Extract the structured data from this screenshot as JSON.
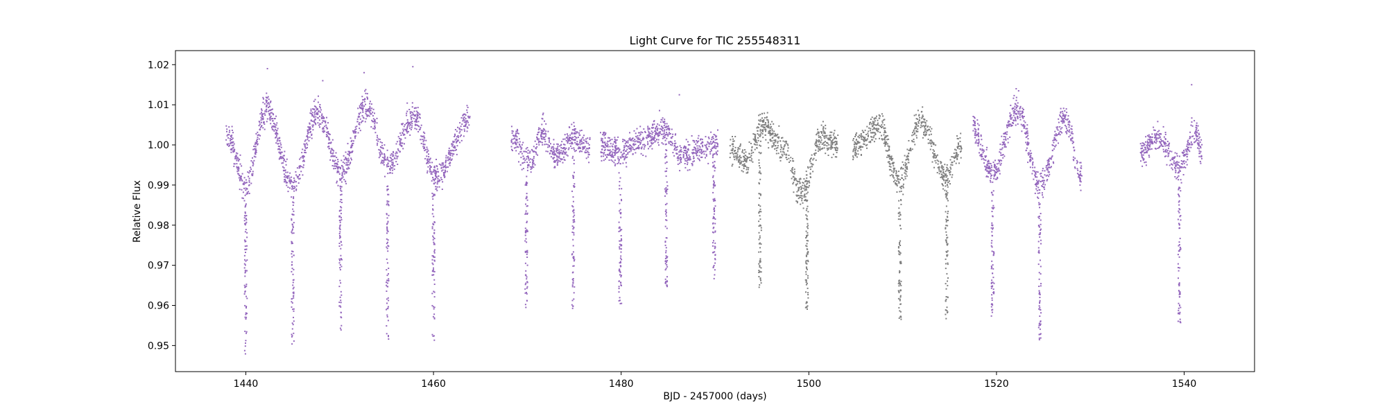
{
  "chart_data": {
    "type": "scatter",
    "title": "Light Curve for TIC 255548311",
    "xlabel": "BJD - 2457000 (days)",
    "ylabel": "Relative Flux",
    "xlim": [
      1432.5,
      1547.5
    ],
    "ylim": [
      0.9435,
      1.0235
    ],
    "xticks": [
      1440,
      1460,
      1480,
      1500,
      1520,
      1540
    ],
    "yticks": [
      0.95,
      0.96,
      0.97,
      0.98,
      0.99,
      1.0,
      1.01,
      1.02
    ],
    "ytick_labels": [
      "0.95",
      "0.96",
      "0.97",
      "0.98",
      "0.99",
      "1.00",
      "1.01",
      "1.02"
    ],
    "grid": false,
    "legend": "none",
    "colors": {
      "purple": "#9467bd",
      "gray": "#7f7f7f"
    },
    "segments": [
      {
        "x_start": 1437.9,
        "x_end": 1463.9,
        "color": "purple"
      },
      {
        "x_start": 1468.3,
        "x_end": 1476.7,
        "color": "purple"
      },
      {
        "x_start": 1477.8,
        "x_end": 1490.3,
        "color": "purple"
      },
      {
        "x_start": 1491.6,
        "x_end": 1503.1,
        "color": "gray"
      },
      {
        "x_start": 1504.7,
        "x_end": 1516.3,
        "color": "gray"
      },
      {
        "x_start": 1517.5,
        "x_end": 1529.1,
        "color": "purple"
      },
      {
        "x_start": 1535.3,
        "x_end": 1541.9,
        "color": "purple"
      }
    ],
    "trend_knots": [
      [
        1437.9,
        1.003
      ],
      [
        1440.0,
        0.99
      ],
      [
        1442.2,
        1.009
      ],
      [
        1445.0,
        0.99
      ],
      [
        1447.6,
        1.008
      ],
      [
        1450.2,
        0.993
      ],
      [
        1452.8,
        1.01
      ],
      [
        1455.2,
        0.995
      ],
      [
        1457.9,
        1.007
      ],
      [
        1460.3,
        0.992
      ],
      [
        1463.8,
        1.006
      ],
      [
        1468.3,
        1.002
      ],
      [
        1470.3,
        0.996
      ],
      [
        1471.6,
        1.003
      ],
      [
        1473.2,
        0.997
      ],
      [
        1474.6,
        1.002
      ],
      [
        1476.6,
        0.999
      ],
      [
        1477.8,
        1.0
      ],
      [
        1479.7,
        0.998
      ],
      [
        1482.0,
        1.001
      ],
      [
        1484.4,
        1.004
      ],
      [
        1486.5,
        0.997
      ],
      [
        1488.3,
        0.999
      ],
      [
        1490.2,
        1.0
      ],
      [
        1491.6,
        0.999
      ],
      [
        1493.3,
        0.996
      ],
      [
        1495.2,
        1.005
      ],
      [
        1497.4,
        0.999
      ],
      [
        1499.2,
        0.988
      ],
      [
        1501.4,
        1.002
      ],
      [
        1503.1,
        1.0
      ],
      [
        1504.7,
        0.999
      ],
      [
        1507.5,
        1.005
      ],
      [
        1509.6,
        0.991
      ],
      [
        1511.9,
        1.006
      ],
      [
        1514.6,
        0.992
      ],
      [
        1516.3,
        1.0
      ],
      [
        1517.5,
        1.004
      ],
      [
        1519.5,
        0.993
      ],
      [
        1522.2,
        1.009
      ],
      [
        1524.6,
        0.99
      ],
      [
        1527.3,
        1.006
      ],
      [
        1529.1,
        0.992
      ],
      [
        1535.3,
        0.998
      ],
      [
        1537.2,
        1.002
      ],
      [
        1539.5,
        0.994
      ],
      [
        1541.2,
        1.004
      ],
      [
        1541.9,
        0.998
      ]
    ],
    "noise_amplitude": 0.0025,
    "transits": [
      {
        "x": 1440.0,
        "depth_min": 0.9475,
        "color": "purple"
      },
      {
        "x": 1445.0,
        "depth_min": 0.95,
        "color": "purple"
      },
      {
        "x": 1450.1,
        "depth_min": 0.9535,
        "color": "purple"
      },
      {
        "x": 1455.1,
        "depth_min": 0.951,
        "color": "purple"
      },
      {
        "x": 1460.0,
        "depth_min": 0.951,
        "color": "purple"
      },
      {
        "x": 1469.9,
        "depth_min": 0.9595,
        "color": "purple"
      },
      {
        "x": 1474.9,
        "depth_min": 0.9575,
        "color": "purple"
      },
      {
        "x": 1479.9,
        "depth_min": 0.96,
        "color": "purple"
      },
      {
        "x": 1484.8,
        "depth_min": 0.9645,
        "color": "purple"
      },
      {
        "x": 1489.9,
        "depth_min": 0.966,
        "color": "purple"
      },
      {
        "x": 1494.8,
        "depth_min": 0.9645,
        "color": "gray"
      },
      {
        "x": 1499.8,
        "depth_min": 0.959,
        "color": "gray"
      },
      {
        "x": 1509.7,
        "depth_min": 0.9565,
        "color": "gray"
      },
      {
        "x": 1514.7,
        "depth_min": 0.9565,
        "color": "gray"
      },
      {
        "x": 1519.6,
        "depth_min": 0.9565,
        "color": "purple"
      },
      {
        "x": 1524.6,
        "depth_min": 0.951,
        "color": "purple"
      },
      {
        "x": 1539.5,
        "depth_min": 0.9555,
        "color": "purple"
      }
    ],
    "outliers": [
      {
        "x": 1442.3,
        "y": 1.019,
        "color": "purple"
      },
      {
        "x": 1452.6,
        "y": 1.018,
        "color": "purple"
      },
      {
        "x": 1457.8,
        "y": 1.0195,
        "color": "purple"
      },
      {
        "x": 1448.2,
        "y": 1.016,
        "color": "purple"
      },
      {
        "x": 1522.1,
        "y": 1.014,
        "color": "purple"
      },
      {
        "x": 1540.8,
        "y": 1.015,
        "color": "purple"
      },
      {
        "x": 1486.2,
        "y": 1.0125,
        "color": "purple"
      }
    ]
  }
}
